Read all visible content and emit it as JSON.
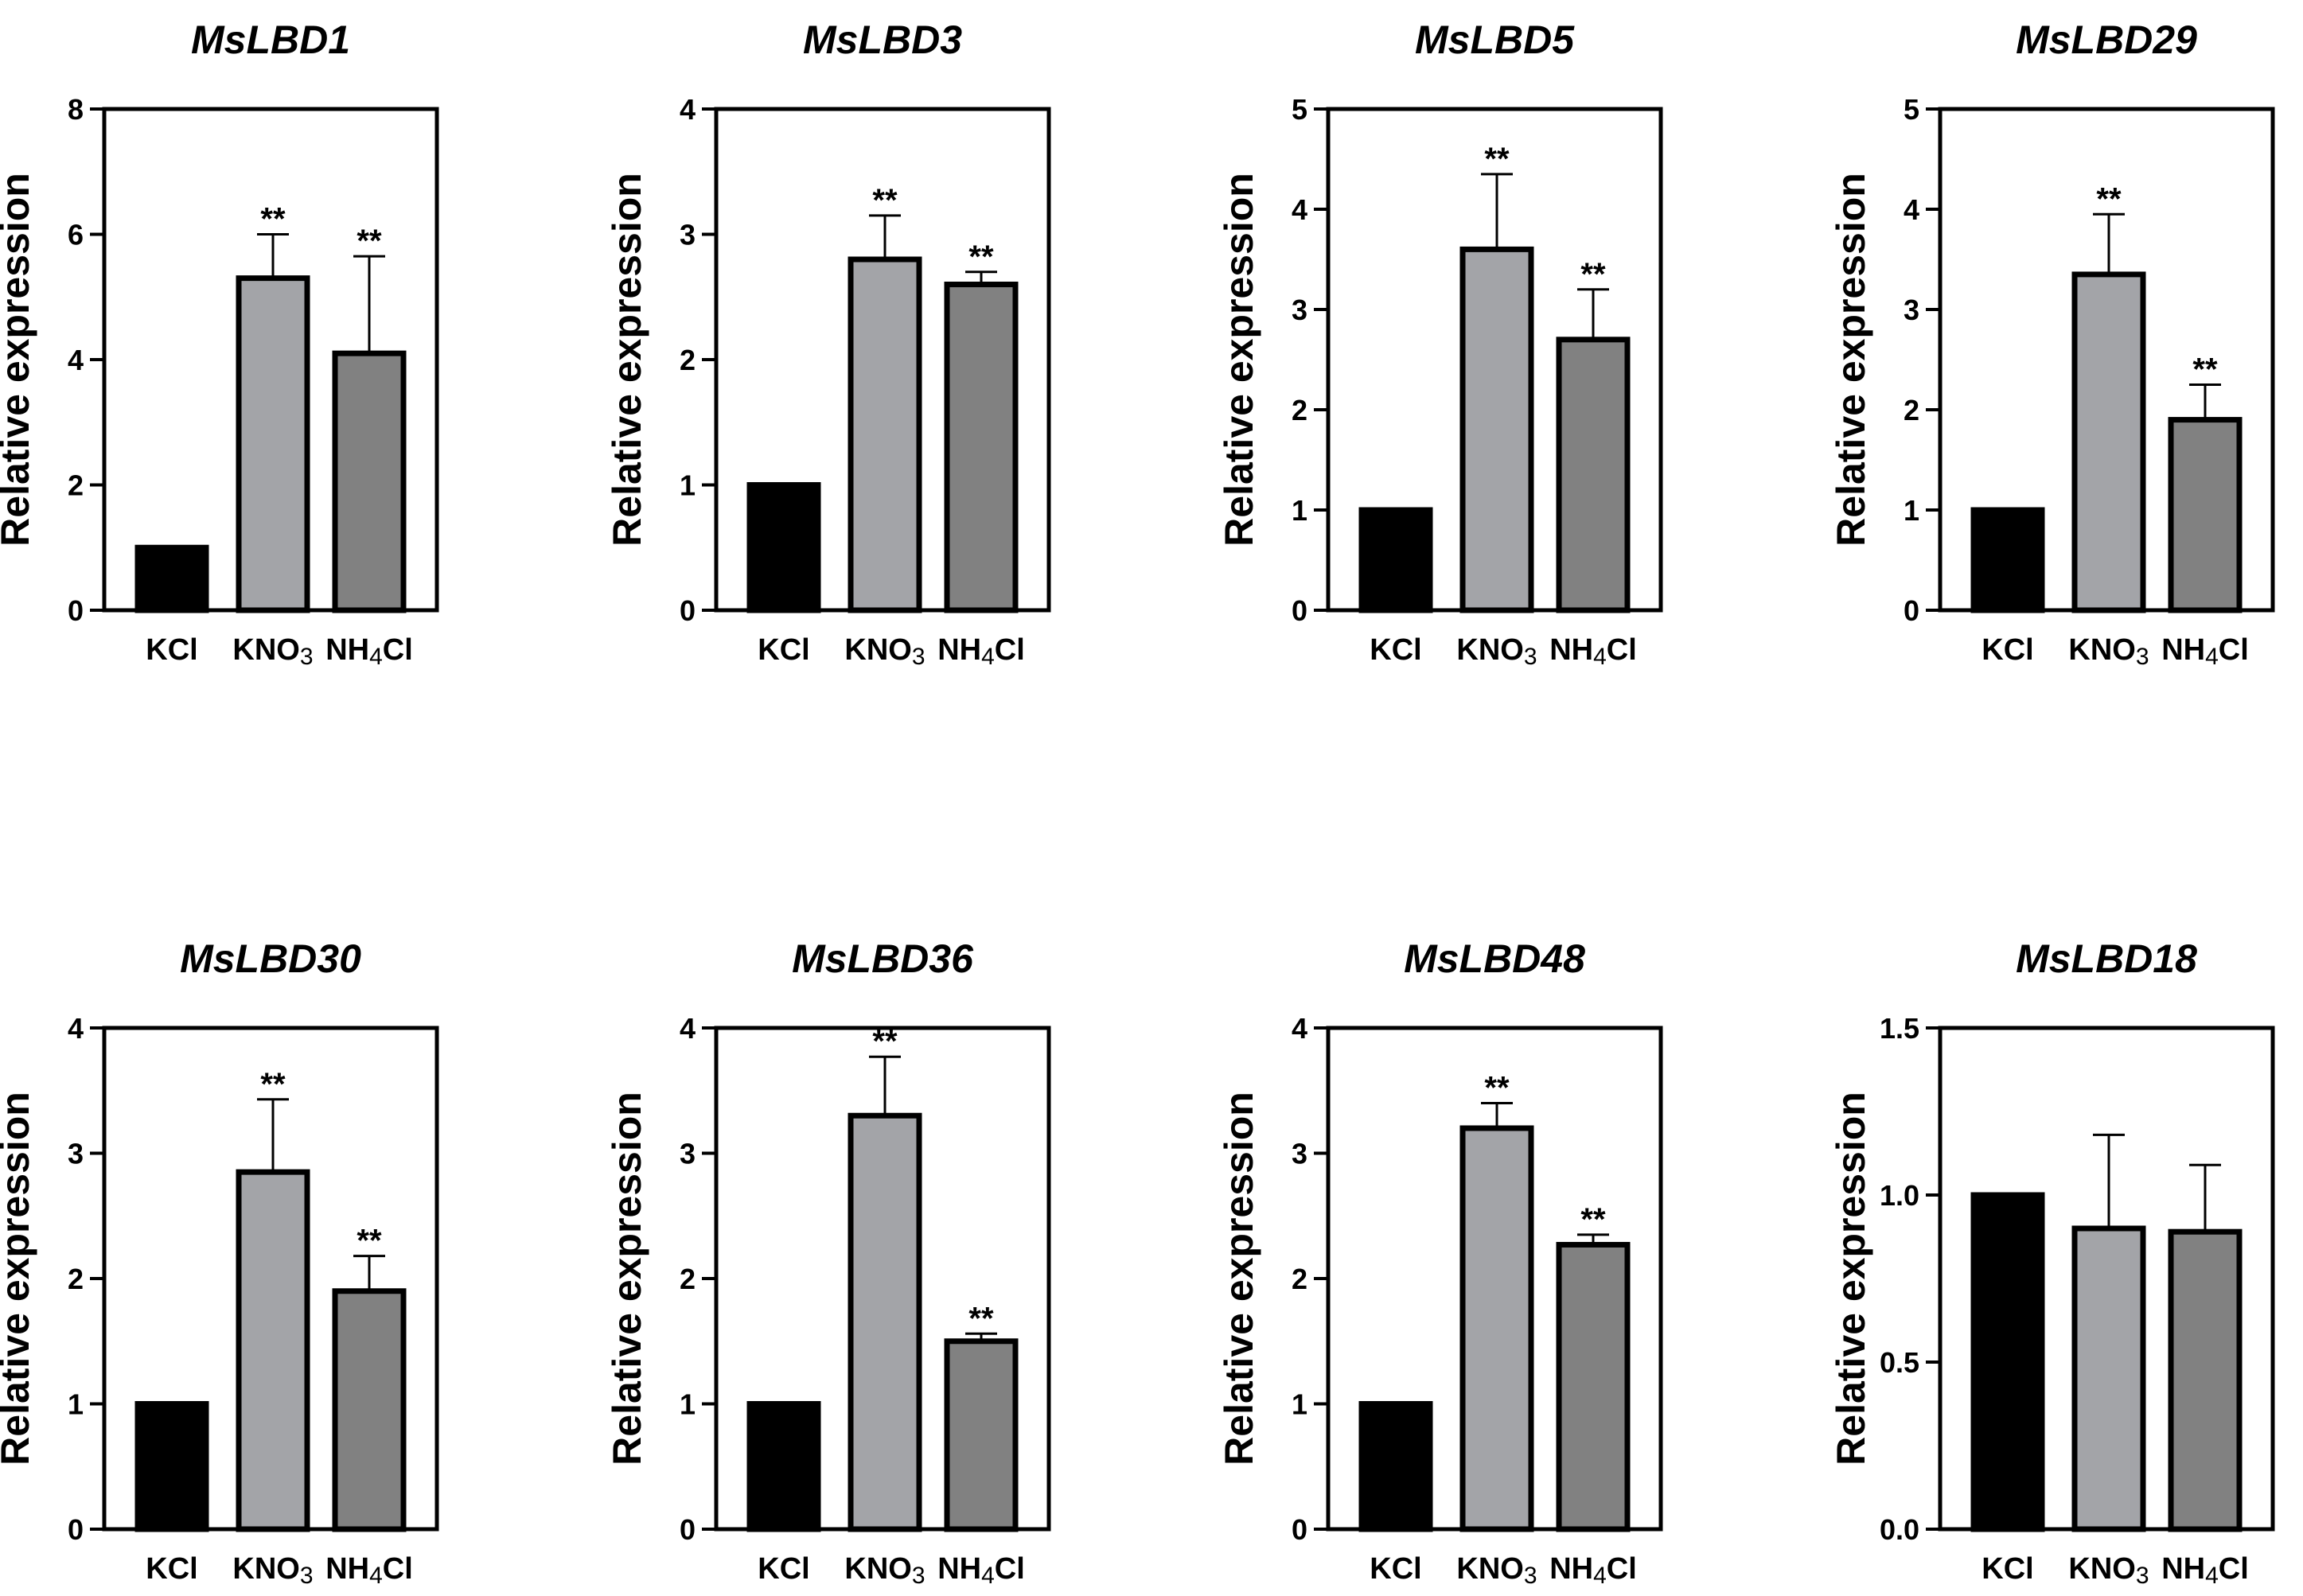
{
  "figure": {
    "ylabel": "Relative expression",
    "colors": {
      "KCl": "#000000",
      "KNO3": "#a3a4a8",
      "NH4Cl": "#818181",
      "outline": "#000000"
    }
  },
  "chart_data": [
    {
      "type": "bar",
      "title": "MsLBD1",
      "ylabel": "Relative expression",
      "categories": [
        "KCl",
        "KNO3",
        "NH4Cl"
      ],
      "category_display": [
        {
          "base": "KCl",
          "sub": ""
        },
        {
          "base": "KNO",
          "sub": "3",
          "after": ""
        },
        {
          "base": "NH",
          "sub": "4",
          "after": "Cl"
        }
      ],
      "values": [
        1.0,
        5.3,
        4.1
      ],
      "errors": [
        0,
        0.7,
        1.55
      ],
      "significance": [
        "",
        "**",
        "**"
      ],
      "ylim": [
        0,
        8
      ],
      "yticks": [
        "0",
        "2",
        "4",
        "6",
        "8"
      ]
    },
    {
      "type": "bar",
      "title": "MsLBD3",
      "ylabel": "Relative expression",
      "categories": [
        "KCl",
        "KNO3",
        "NH4Cl"
      ],
      "category_display": [
        {
          "base": "KCl",
          "sub": ""
        },
        {
          "base": "KNO",
          "sub": "3",
          "after": ""
        },
        {
          "base": "NH",
          "sub": "4",
          "after": "Cl"
        }
      ],
      "values": [
        1.0,
        2.8,
        2.6
      ],
      "errors": [
        0,
        0.35,
        0.1
      ],
      "significance": [
        "",
        "**",
        "**"
      ],
      "ylim": [
        0,
        4
      ],
      "yticks": [
        "0",
        "1",
        "2",
        "3",
        "4"
      ]
    },
    {
      "type": "bar",
      "title": "MsLBD5",
      "ylabel": "Relative expression",
      "categories": [
        "KCl",
        "KNO3",
        "NH4Cl"
      ],
      "category_display": [
        {
          "base": "KCl",
          "sub": ""
        },
        {
          "base": "KNO",
          "sub": "3",
          "after": ""
        },
        {
          "base": "NH",
          "sub": "4",
          "after": "Cl"
        }
      ],
      "values": [
        1.0,
        3.6,
        2.7
      ],
      "errors": [
        0,
        0.75,
        0.5
      ],
      "significance": [
        "",
        "**",
        "**"
      ],
      "ylim": [
        0,
        5
      ],
      "yticks": [
        "0",
        "1",
        "2",
        "3",
        "4",
        "5"
      ]
    },
    {
      "type": "bar",
      "title": "MsLBD29",
      "ylabel": "Relative expression",
      "categories": [
        "KCl",
        "KNO3",
        "NH4Cl"
      ],
      "category_display": [
        {
          "base": "KCl",
          "sub": ""
        },
        {
          "base": "KNO",
          "sub": "3",
          "after": ""
        },
        {
          "base": "NH",
          "sub": "4",
          "after": "Cl"
        }
      ],
      "values": [
        1.0,
        3.35,
        1.9
      ],
      "errors": [
        0,
        0.6,
        0.35
      ],
      "significance": [
        "",
        "**",
        "**"
      ],
      "ylim": [
        0,
        5
      ],
      "yticks": [
        "0",
        "1",
        "2",
        "3",
        "4",
        "5"
      ]
    },
    {
      "type": "bar",
      "title": "MsLBD30",
      "ylabel": "Relative expression",
      "categories": [
        "KCl",
        "KNO3",
        "NH4Cl"
      ],
      "category_display": [
        {
          "base": "KCl",
          "sub": ""
        },
        {
          "base": "KNO",
          "sub": "3",
          "after": ""
        },
        {
          "base": "NH",
          "sub": "4",
          "after": "Cl"
        }
      ],
      "values": [
        1.0,
        2.85,
        1.9
      ],
      "errors": [
        0,
        0.58,
        0.28
      ],
      "significance": [
        "",
        "**",
        "**"
      ],
      "ylim": [
        0,
        4
      ],
      "yticks": [
        "0",
        "1",
        "2",
        "3",
        "4"
      ]
    },
    {
      "type": "bar",
      "title": "MsLBD36",
      "ylabel": "Relative expression",
      "categories": [
        "KCl",
        "KNO3",
        "NH4Cl"
      ],
      "category_display": [
        {
          "base": "KCl",
          "sub": ""
        },
        {
          "base": "KNO",
          "sub": "3",
          "after": ""
        },
        {
          "base": "NH",
          "sub": "4",
          "after": "Cl"
        }
      ],
      "values": [
        1.0,
        3.3,
        1.5
      ],
      "errors": [
        0,
        0.47,
        0.06
      ],
      "significance": [
        "",
        "**",
        "**"
      ],
      "ylim": [
        0,
        4
      ],
      "yticks": [
        "0",
        "1",
        "2",
        "3",
        "4"
      ]
    },
    {
      "type": "bar",
      "title": "MsLBD48",
      "ylabel": "Relative expression",
      "categories": [
        "KCl",
        "KNO3",
        "NH4Cl"
      ],
      "category_display": [
        {
          "base": "KCl",
          "sub": ""
        },
        {
          "base": "KNO",
          "sub": "3",
          "after": ""
        },
        {
          "base": "NH",
          "sub": "4",
          "after": "Cl"
        }
      ],
      "values": [
        1.0,
        3.2,
        2.27
      ],
      "errors": [
        0,
        0.2,
        0.08
      ],
      "significance": [
        "",
        "**",
        "**"
      ],
      "ylim": [
        0,
        4
      ],
      "yticks": [
        "0",
        "1",
        "2",
        "3",
        "4"
      ]
    },
    {
      "type": "bar",
      "title": "MsLBD18",
      "ylabel": "Relative expression",
      "categories": [
        "KCl",
        "KNO3",
        "NH4Cl"
      ],
      "category_display": [
        {
          "base": "KCl",
          "sub": ""
        },
        {
          "base": "KNO",
          "sub": "3",
          "after": ""
        },
        {
          "base": "NH",
          "sub": "4",
          "after": "Cl"
        }
      ],
      "values": [
        1.0,
        0.9,
        0.89
      ],
      "errors": [
        0,
        0.28,
        0.2
      ],
      "significance": [
        "",
        "",
        ""
      ],
      "ylim": [
        0,
        1.5
      ],
      "yticks": [
        "0.0",
        "0.5",
        "1.0",
        "1.5"
      ]
    }
  ]
}
